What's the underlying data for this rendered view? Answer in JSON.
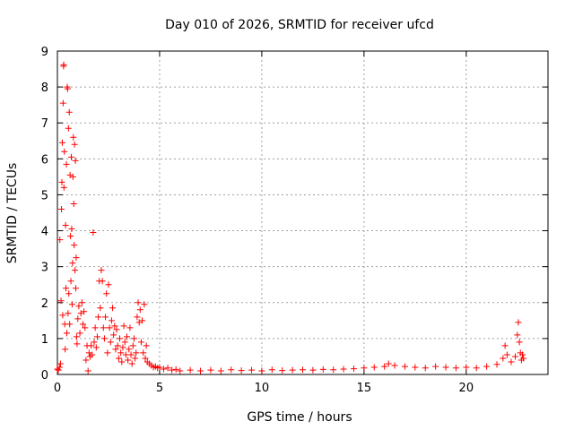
{
  "chart_data": {
    "type": "scatter",
    "title": "Day 010 of 2026, SRMTID for receiver ufcd",
    "xlabel": "GPS time / hours",
    "ylabel": "SRMTID / TECUs",
    "xlim": [
      0,
      24
    ],
    "ylim": [
      0,
      9
    ],
    "xticks": [
      0,
      5,
      10,
      15,
      20
    ],
    "yticks": [
      0,
      1,
      2,
      3,
      4,
      5,
      6,
      7,
      8,
      9
    ],
    "grid": true,
    "marker": "+",
    "series": [
      {
        "name": "SRMTID",
        "color": "#ff0000",
        "points": [
          [
            0.0,
            0.15
          ],
          [
            0.05,
            0.12
          ],
          [
            0.1,
            0.2
          ],
          [
            0.12,
            3.75
          ],
          [
            0.15,
            0.3
          ],
          [
            0.18,
            2.05
          ],
          [
            0.2,
            4.6
          ],
          [
            0.22,
            5.35
          ],
          [
            0.24,
            6.45
          ],
          [
            0.26,
            1.65
          ],
          [
            0.28,
            7.55
          ],
          [
            0.3,
            8.58
          ],
          [
            0.31,
            8.62
          ],
          [
            0.32,
            5.2
          ],
          [
            0.34,
            6.2
          ],
          [
            0.36,
            1.4
          ],
          [
            0.38,
            0.7
          ],
          [
            0.4,
            4.15
          ],
          [
            0.42,
            2.4
          ],
          [
            0.44,
            5.85
          ],
          [
            0.46,
            1.15
          ],
          [
            0.48,
            8.0
          ],
          [
            0.5,
            7.95
          ],
          [
            0.52,
            1.7
          ],
          [
            0.54,
            6.85
          ],
          [
            0.56,
            2.25
          ],
          [
            0.58,
            7.3
          ],
          [
            0.6,
            1.4
          ],
          [
            0.62,
            5.55
          ],
          [
            0.64,
            3.85
          ],
          [
            0.66,
            2.6
          ],
          [
            0.68,
            6.05
          ],
          [
            0.7,
            4.05
          ],
          [
            0.72,
            1.95
          ],
          [
            0.74,
            3.1
          ],
          [
            0.76,
            5.5
          ],
          [
            0.78,
            6.6
          ],
          [
            0.8,
            4.75
          ],
          [
            0.82,
            3.6
          ],
          [
            0.84,
            6.4
          ],
          [
            0.86,
            2.9
          ],
          [
            0.88,
            5.95
          ],
          [
            0.9,
            2.4
          ],
          [
            0.92,
            3.25
          ],
          [
            0.94,
            1.05
          ],
          [
            0.96,
            0.85
          ],
          [
            1.0,
            1.55
          ],
          [
            1.05,
            1.9
          ],
          [
            1.1,
            1.15
          ],
          [
            1.15,
            1.7
          ],
          [
            1.2,
            2.0
          ],
          [
            1.25,
            1.4
          ],
          [
            1.3,
            1.75
          ],
          [
            1.35,
            1.3
          ],
          [
            1.4,
            0.4
          ],
          [
            1.45,
            0.8
          ],
          [
            1.5,
            0.1
          ],
          [
            1.55,
            0.6
          ],
          [
            1.6,
            0.5
          ],
          [
            1.65,
            0.8
          ],
          [
            1.7,
            0.55
          ],
          [
            1.75,
            3.95
          ],
          [
            1.8,
            0.9
          ],
          [
            1.85,
            1.3
          ],
          [
            1.9,
            0.75
          ],
          [
            1.95,
            1.05
          ],
          [
            2.0,
            1.6
          ],
          [
            2.05,
            2.6
          ],
          [
            2.1,
            1.85
          ],
          [
            2.15,
            2.9
          ],
          [
            2.2,
            2.6
          ],
          [
            2.25,
            1.3
          ],
          [
            2.3,
            1.0
          ],
          [
            2.35,
            1.6
          ],
          [
            2.4,
            2.25
          ],
          [
            2.45,
            0.6
          ],
          [
            2.5,
            2.5
          ],
          [
            2.55,
            1.3
          ],
          [
            2.6,
            0.9
          ],
          [
            2.65,
            1.5
          ],
          [
            2.7,
            1.85
          ],
          [
            2.75,
            1.1
          ],
          [
            2.8,
            1.35
          ],
          [
            2.85,
            0.7
          ],
          [
            2.9,
            1.25
          ],
          [
            2.95,
            0.8
          ],
          [
            3.0,
            0.45
          ],
          [
            3.05,
            1.0
          ],
          [
            3.1,
            0.6
          ],
          [
            3.15,
            0.35
          ],
          [
            3.2,
            0.75
          ],
          [
            3.25,
            1.35
          ],
          [
            3.3,
            0.9
          ],
          [
            3.35,
            0.55
          ],
          [
            3.4,
            1.05
          ],
          [
            3.45,
            0.4
          ],
          [
            3.5,
            0.7
          ],
          [
            3.55,
            1.3
          ],
          [
            3.6,
            0.55
          ],
          [
            3.65,
            0.3
          ],
          [
            3.7,
            0.8
          ],
          [
            3.75,
            1.0
          ],
          [
            3.8,
            0.45
          ],
          [
            3.85,
            0.6
          ],
          [
            3.9,
            1.6
          ],
          [
            3.95,
            2.0
          ],
          [
            4.0,
            1.45
          ],
          [
            4.05,
            1.8
          ],
          [
            4.1,
            0.9
          ],
          [
            4.15,
            1.5
          ],
          [
            4.2,
            0.6
          ],
          [
            4.25,
            1.95
          ],
          [
            4.3,
            0.45
          ],
          [
            4.35,
            0.8
          ],
          [
            4.4,
            0.35
          ],
          [
            4.5,
            0.3
          ],
          [
            4.6,
            0.25
          ],
          [
            4.7,
            0.2
          ],
          [
            4.8,
            0.22
          ],
          [
            4.9,
            0.18
          ],
          [
            5.0,
            0.2
          ],
          [
            5.2,
            0.15
          ],
          [
            5.4,
            0.18
          ],
          [
            5.6,
            0.12
          ],
          [
            5.8,
            0.14
          ],
          [
            6.0,
            0.1
          ],
          [
            6.5,
            0.12
          ],
          [
            7.0,
            0.1
          ],
          [
            7.5,
            0.12
          ],
          [
            8.0,
            0.1
          ],
          [
            8.5,
            0.13
          ],
          [
            9.0,
            0.11
          ],
          [
            9.5,
            0.12
          ],
          [
            10.0,
            0.1
          ],
          [
            10.5,
            0.13
          ],
          [
            11.0,
            0.11
          ],
          [
            11.5,
            0.12
          ],
          [
            12.0,
            0.13
          ],
          [
            12.5,
            0.12
          ],
          [
            13.0,
            0.14
          ],
          [
            13.5,
            0.13
          ],
          [
            14.0,
            0.15
          ],
          [
            14.5,
            0.16
          ],
          [
            15.0,
            0.18
          ],
          [
            15.5,
            0.2
          ],
          [
            16.0,
            0.22
          ],
          [
            16.2,
            0.3
          ],
          [
            16.5,
            0.25
          ],
          [
            17.0,
            0.22
          ],
          [
            17.5,
            0.2
          ],
          [
            18.0,
            0.18
          ],
          [
            18.5,
            0.22
          ],
          [
            19.0,
            0.2
          ],
          [
            19.5,
            0.18
          ],
          [
            20.0,
            0.2
          ],
          [
            20.5,
            0.18
          ],
          [
            21.0,
            0.22
          ],
          [
            21.5,
            0.28
          ],
          [
            21.8,
            0.45
          ],
          [
            21.9,
            0.8
          ],
          [
            22.0,
            0.55
          ],
          [
            22.2,
            0.35
          ],
          [
            22.4,
            0.5
          ],
          [
            22.5,
            1.1
          ],
          [
            22.55,
            1.45
          ],
          [
            22.6,
            0.9
          ],
          [
            22.65,
            0.6
          ],
          [
            22.7,
            0.4
          ],
          [
            22.75,
            0.55
          ],
          [
            22.8,
            0.45
          ]
        ]
      }
    ]
  }
}
